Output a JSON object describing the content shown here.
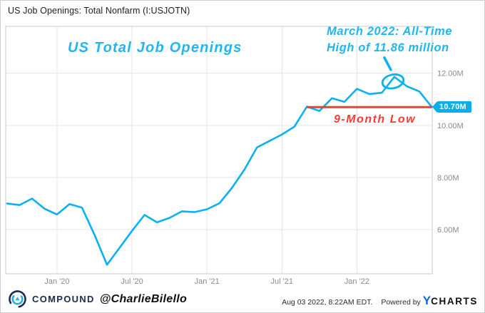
{
  "header": {
    "title": "US Job Openings: Total Nonfarm (I:USJOTN)"
  },
  "annotations": {
    "series_label": "US Total Job Openings",
    "callout_line1": "March 2022: All-Time",
    "callout_line2": "High of 11.86 million",
    "low_label": "9-Month Low"
  },
  "footer": {
    "brand": "COMPOUND",
    "handle": "@CharlieBilello",
    "timestamp": "Aug 03 2022, 8:22AM EDT.",
    "powered_by": "Powered by",
    "ycharts_y": "Y",
    "ycharts_rest": "CHARTS"
  },
  "colors": {
    "series_line": "#09b1f2",
    "annotation_cyan": "#1fb6f2",
    "annotation_red": "#ef3f35",
    "badge_bg": "#0aaee8",
    "brand_navy": "#1b2b4b",
    "ycharts_blue": "#0a68e8",
    "gridline": "#e6e6e6",
    "tick_label": "#8a8a8a"
  },
  "chart_data": {
    "type": "line",
    "title": "US Job Openings: Total Nonfarm (I:USJOTN)",
    "unit": "millions of job openings",
    "grid": true,
    "ylim": [
      4.3,
      13.8
    ],
    "xlabel": "",
    "ylabel": "",
    "x": [
      "Aug '19",
      "Sep '19",
      "Oct '19",
      "Nov '19",
      "Dec '19",
      "Jan '20",
      "Feb '20",
      "Mar '20",
      "Apr '20",
      "May '20",
      "Jun '20",
      "Jul '20",
      "Aug '20",
      "Sep '20",
      "Oct '20",
      "Nov '20",
      "Dec '20",
      "Jan '21",
      "Feb '21",
      "Mar '21",
      "Apr '21",
      "May '21",
      "Jun '21",
      "Jul '21",
      "Aug '21",
      "Sep '21",
      "Oct '21",
      "Nov '21",
      "Dec '21",
      "Jan '22",
      "Feb '22",
      "Mar '22",
      "Apr '22",
      "May '22",
      "Jun '22"
    ],
    "values": [
      7.0,
      6.94,
      7.19,
      6.8,
      6.58,
      6.98,
      6.84,
      5.8,
      4.65,
      5.3,
      5.95,
      6.56,
      6.28,
      6.45,
      6.7,
      6.67,
      6.78,
      7.01,
      7.6,
      8.3,
      9.15,
      9.4,
      9.65,
      9.95,
      10.72,
      10.55,
      11.04,
      10.9,
      11.4,
      11.2,
      11.25,
      11.86,
      11.5,
      11.3,
      10.7
    ],
    "line_color": "#09b1f2",
    "y_ticks": [
      {
        "label": "12.00M",
        "value": 12
      },
      {
        "label": "10.00M",
        "value": 10
      },
      {
        "label": "8.00M",
        "value": 8
      },
      {
        "label": "6.00M",
        "value": 6
      }
    ],
    "x_ticks": [
      {
        "label": "Jan '20",
        "index": 4
      },
      {
        "label": "Jul '20",
        "index": 10
      },
      {
        "label": "Jan '21",
        "index": 16
      },
      {
        "label": "Jul '21",
        "index": 22
      },
      {
        "label": "Jan '22",
        "index": 28
      }
    ],
    "reference_line": {
      "label": "9-Month Low",
      "value": 10.7,
      "start_index": 24,
      "end_index": 34,
      "color": "#ef3f35"
    },
    "callout": {
      "point_index": 31,
      "value": 11.86,
      "text": "March 2022: All-Time High of 11.86 million"
    },
    "end_badge": {
      "label": "10.70M",
      "value": 10.7
    }
  }
}
